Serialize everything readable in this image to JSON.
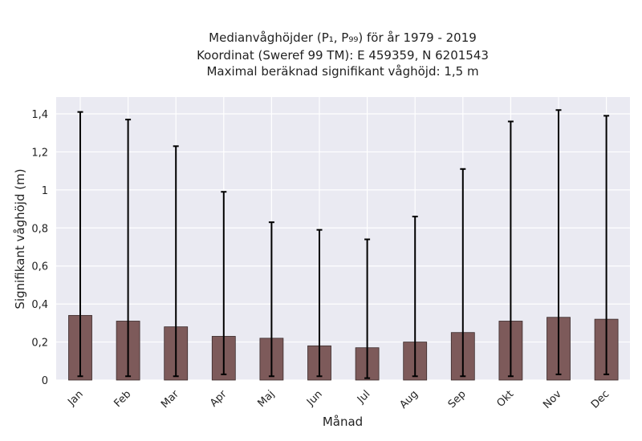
{
  "chart_data": {
    "type": "bar",
    "title_lines": [
      "Medianvåghöjder (P₁, P₉₉) för år 1979 - 2019",
      "Koordinat (Sweref 99 TM): E 459359, N 6201543",
      "Maximal beräknad signifikant våghöjd: 1,5 m"
    ],
    "xlabel": "Månad",
    "ylabel": "Signifikant våghöjd (m)",
    "categories": [
      "Jan",
      "Feb",
      "Mar",
      "Apr",
      "Maj",
      "Jun",
      "Jul",
      "Aug",
      "Sep",
      "Okt",
      "Nov",
      "Dec"
    ],
    "values": [
      0.34,
      0.31,
      0.28,
      0.23,
      0.22,
      0.18,
      0.17,
      0.2,
      0.25,
      0.31,
      0.33,
      0.32
    ],
    "p1": [
      0.02,
      0.02,
      0.02,
      0.03,
      0.02,
      0.02,
      0.01,
      0.02,
      0.02,
      0.02,
      0.03,
      0.03
    ],
    "p99": [
      1.41,
      1.37,
      1.23,
      0.99,
      0.83,
      0.79,
      0.74,
      0.86,
      1.11,
      1.36,
      1.42,
      1.39
    ],
    "ylim": [
      0,
      1.5
    ],
    "yticks": [
      0,
      0.2,
      0.4,
      0.6,
      0.8,
      1,
      1.2,
      1.4
    ],
    "ytick_labels": [
      "0",
      "0,2",
      "0,4",
      "0,6",
      "0,8",
      "1",
      "1,2",
      "1,4"
    ],
    "grid": true,
    "colors": {
      "bar": "#7d5a5a",
      "bar_edge": "#3a2a2a",
      "errorbar": "#000000",
      "plot_bg": "#eaeaf2",
      "grid": "#ffffff"
    }
  }
}
